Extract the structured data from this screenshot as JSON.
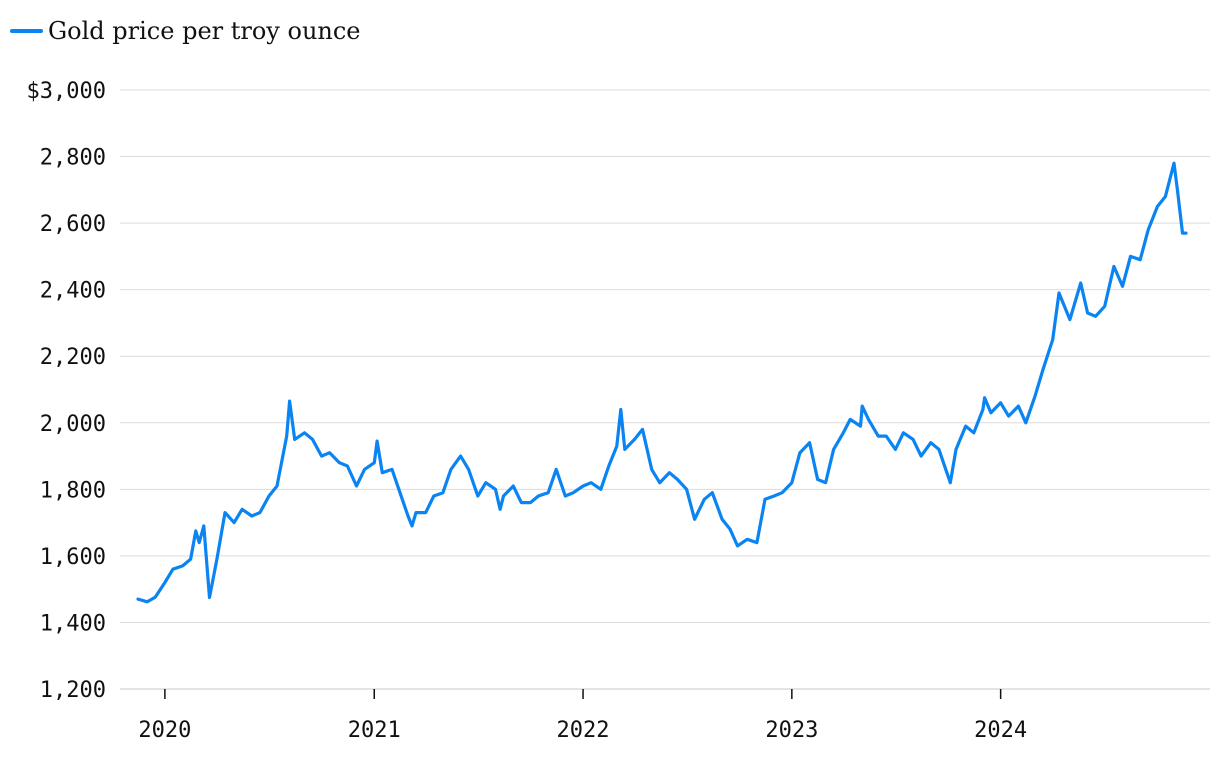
{
  "chart_data": {
    "type": "line",
    "title": "",
    "xlabel": "",
    "ylabel": "",
    "y_tick_prefix": "$",
    "ylim": [
      1200,
      3000
    ],
    "y_ticks": [
      1200,
      1400,
      1600,
      1800,
      2000,
      2200,
      2400,
      2600,
      2800,
      3000
    ],
    "y_tick_labels": [
      "1,200",
      "1,400",
      "1,600",
      "1,800",
      "2,000",
      "2,200",
      "2,400",
      "2,600",
      "2,800",
      "$3,000"
    ],
    "xlim": [
      "2019-11-01",
      "2025-01-01"
    ],
    "x_ticks": [
      "2020-01-01",
      "2021-01-01",
      "2022-01-01",
      "2023-01-01",
      "2024-01-01"
    ],
    "x_tick_labels": [
      "2020",
      "2021",
      "2022",
      "2023",
      "2024"
    ],
    "grid": true,
    "legend_position": "top-left",
    "colors": {
      "series": "#0a84f2"
    },
    "series": [
      {
        "name": "Gold price per troy ounce",
        "x": [
          "2019-11-15",
          "2019-12-01",
          "2019-12-15",
          "2020-01-01",
          "2020-01-15",
          "2020-02-01",
          "2020-02-15",
          "2020-02-24",
          "2020-03-01",
          "2020-03-09",
          "2020-03-19",
          "2020-04-01",
          "2020-04-15",
          "2020-05-01",
          "2020-05-15",
          "2020-06-01",
          "2020-06-15",
          "2020-07-01",
          "2020-07-15",
          "2020-08-01",
          "2020-08-06",
          "2020-08-15",
          "2020-09-01",
          "2020-09-15",
          "2020-10-01",
          "2020-10-15",
          "2020-11-01",
          "2020-11-15",
          "2020-12-01",
          "2020-12-15",
          "2021-01-01",
          "2021-01-06",
          "2021-01-15",
          "2021-02-01",
          "2021-02-15",
          "2021-03-01",
          "2021-03-08",
          "2021-03-15",
          "2021-04-01",
          "2021-04-15",
          "2021-05-01",
          "2021-05-15",
          "2021-06-01",
          "2021-06-15",
          "2021-07-01",
          "2021-07-15",
          "2021-08-01",
          "2021-08-09",
          "2021-08-15",
          "2021-09-01",
          "2021-09-15",
          "2021-10-01",
          "2021-10-15",
          "2021-11-01",
          "2021-11-15",
          "2021-12-01",
          "2021-12-15",
          "2022-01-01",
          "2022-01-15",
          "2022-02-01",
          "2022-02-15",
          "2022-03-01",
          "2022-03-08",
          "2022-03-15",
          "2022-04-01",
          "2022-04-15",
          "2022-05-01",
          "2022-05-15",
          "2022-06-01",
          "2022-06-15",
          "2022-07-01",
          "2022-07-15",
          "2022-08-01",
          "2022-08-15",
          "2022-09-01",
          "2022-09-15",
          "2022-09-28",
          "2022-10-15",
          "2022-11-01",
          "2022-11-15",
          "2022-12-01",
          "2022-12-15",
          "2023-01-01",
          "2023-01-15",
          "2023-02-01",
          "2023-02-15",
          "2023-03-01",
          "2023-03-15",
          "2023-04-01",
          "2023-04-13",
          "2023-05-01",
          "2023-05-04",
          "2023-05-15",
          "2023-06-01",
          "2023-06-15",
          "2023-07-01",
          "2023-07-15",
          "2023-08-01",
          "2023-08-15",
          "2023-09-01",
          "2023-09-15",
          "2023-10-05",
          "2023-10-15",
          "2023-11-01",
          "2023-11-15",
          "2023-12-01",
          "2023-12-04",
          "2023-12-15",
          "2024-01-01",
          "2024-01-15",
          "2024-02-01",
          "2024-02-14",
          "2024-03-01",
          "2024-03-15",
          "2024-04-01",
          "2024-04-12",
          "2024-05-01",
          "2024-05-20",
          "2024-06-01",
          "2024-06-15",
          "2024-07-01",
          "2024-07-17",
          "2024-08-01",
          "2024-08-15",
          "2024-09-01",
          "2024-09-15",
          "2024-10-01",
          "2024-10-15",
          "2024-10-30",
          "2024-11-05",
          "2024-11-14",
          "2024-11-20"
        ],
        "values": [
          1470,
          1462,
          1476,
          1520,
          1560,
          1570,
          1590,
          1675,
          1640,
          1690,
          1475,
          1590,
          1730,
          1700,
          1740,
          1720,
          1730,
          1780,
          1810,
          1960,
          2065,
          1950,
          1970,
          1950,
          1900,
          1910,
          1880,
          1870,
          1810,
          1860,
          1880,
          1945,
          1850,
          1860,
          1790,
          1720,
          1690,
          1730,
          1730,
          1780,
          1790,
          1860,
          1900,
          1860,
          1780,
          1820,
          1800,
          1740,
          1780,
          1810,
          1760,
          1760,
          1780,
          1790,
          1860,
          1780,
          1790,
          1810,
          1820,
          1800,
          1870,
          1930,
          2040,
          1920,
          1950,
          1980,
          1860,
          1820,
          1850,
          1830,
          1800,
          1710,
          1770,
          1790,
          1710,
          1680,
          1630,
          1650,
          1640,
          1770,
          1780,
          1790,
          1820,
          1910,
          1940,
          1830,
          1820,
          1920,
          1970,
          2010,
          1990,
          2050,
          2010,
          1960,
          1960,
          1920,
          1970,
          1950,
          1900,
          1940,
          1920,
          1820,
          1920,
          1990,
          1970,
          2040,
          2075,
          2030,
          2060,
          2020,
          2050,
          2000,
          2080,
          2160,
          2250,
          2390,
          2310,
          2420,
          2330,
          2320,
          2350,
          2470,
          2410,
          2500,
          2490,
          2580,
          2650,
          2680,
          2780,
          2700,
          2570,
          2570
        ]
      }
    ]
  }
}
